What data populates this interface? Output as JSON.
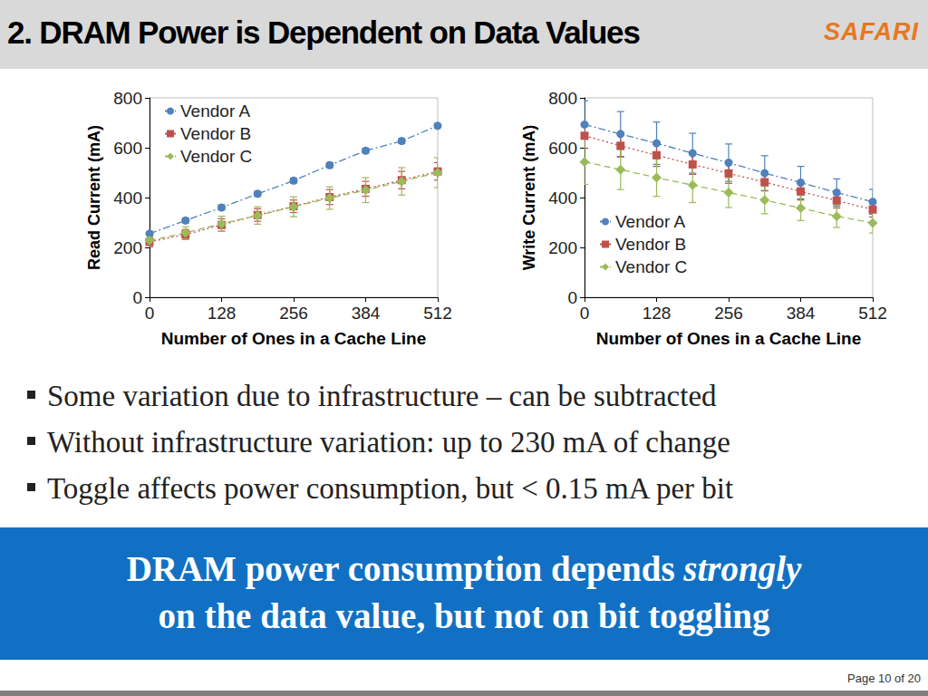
{
  "slide": {
    "title": "2. DRAM Power is Dependent on Data Values",
    "logo": "SAFARI",
    "bullets": [
      "Some variation due to infrastructure – can be subtracted",
      "Without infrastructure variation: up to 230 mA of change",
      "Toggle affects power consumption, but < 0.15 mA per bit"
    ],
    "callout": [
      [
        {
          "text": "DRAM power consumption depends "
        },
        {
          "text": "strongly",
          "emphasis": true
        }
      ],
      [
        {
          "text": "on the data value, but not on bit toggling"
        }
      ]
    ],
    "page": "Page 10 of 20"
  },
  "chart_data": [
    {
      "type": "line",
      "x_label": "Number of Ones in a Cache Line",
      "y_label": "Read Current (mA)",
      "x": [
        0,
        64,
        128,
        192,
        256,
        320,
        384,
        448,
        512
      ],
      "xlim": [
        0,
        512
      ],
      "xticks": [
        0,
        128,
        256,
        384,
        512
      ],
      "ylim": [
        0,
        800
      ],
      "yticks": [
        0,
        200,
        400,
        600,
        800
      ],
      "grid": false,
      "legend": "upper left",
      "series": [
        {
          "name": "Vendor A",
          "color": "#4f81bd",
          "marker": "circle",
          "line_style": "dashdot",
          "values": [
            255,
            308,
            360,
            415,
            468,
            530,
            588,
            627,
            688
          ],
          "errors": [
            10,
            10,
            10,
            10,
            10,
            10,
            10,
            10,
            10
          ]
        },
        {
          "name": "Vendor B",
          "color": "#c0504d",
          "marker": "square",
          "line_style": "dotted",
          "values": [
            222,
            252,
            290,
            330,
            365,
            402,
            435,
            470,
            505
          ],
          "errors": [
            20,
            20,
            25,
            25,
            25,
            30,
            30,
            35,
            35
          ]
        },
        {
          "name": "Vendor C",
          "color": "#9bbb59",
          "marker": "diamond",
          "line_style": "dashed",
          "values": [
            228,
            258,
            295,
            328,
            363,
            398,
            430,
            465,
            500
          ],
          "errors": [
            15,
            25,
            30,
            35,
            40,
            45,
            50,
            55,
            60
          ]
        }
      ]
    },
    {
      "type": "line",
      "x_label": "Number of Ones in a Cache Line",
      "y_label": "Write Current (mA)",
      "x": [
        0,
        64,
        128,
        192,
        256,
        320,
        384,
        448,
        512
      ],
      "xlim": [
        0,
        512
      ],
      "xticks": [
        0,
        128,
        256,
        384,
        512
      ],
      "ylim": [
        0,
        800
      ],
      "yticks": [
        0,
        200,
        400,
        600,
        800
      ],
      "grid": false,
      "legend": "lower left",
      "series": [
        {
          "name": "Vendor A",
          "color": "#4f81bd",
          "marker": "circle",
          "line_style": "dashdot",
          "values": [
            693,
            655,
            618,
            578,
            540,
            498,
            460,
            420,
            383
          ],
          "errors": [
            95,
            90,
            85,
            80,
            75,
            70,
            65,
            55,
            50
          ]
        },
        {
          "name": "Vendor B",
          "color": "#c0504d",
          "marker": "square",
          "line_style": "dotted",
          "values": [
            648,
            608,
            570,
            533,
            497,
            462,
            425,
            388,
            352
          ],
          "errors": [
            50,
            45,
            45,
            40,
            40,
            35,
            35,
            30,
            30
          ]
        },
        {
          "name": "Vendor C",
          "color": "#9bbb59",
          "marker": "diamond",
          "line_style": "dashed",
          "values": [
            543,
            512,
            480,
            450,
            420,
            390,
            358,
            325,
            298
          ],
          "errors": [
            90,
            80,
            75,
            70,
            60,
            55,
            50,
            45,
            40
          ]
        }
      ]
    }
  ]
}
